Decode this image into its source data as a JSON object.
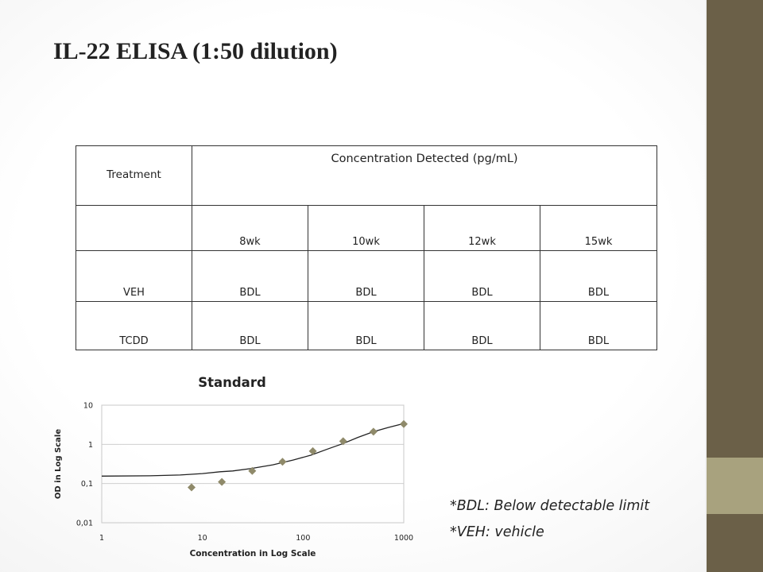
{
  "slide": {
    "title": "IL-22 ELISA (1:50 dilution)",
    "footnotes": [
      "*BDL: Below detectable limit",
      "*VEH: vehicle"
    ]
  },
  "table": {
    "treatment_header": "Treatment",
    "concentration_header": "Concentration  Detected (pg/mL)",
    "columns": [
      "8wk",
      "10wk",
      "12wk",
      "15wk"
    ],
    "rows": [
      {
        "label": "VEH",
        "values": [
          "BDL",
          "BDL",
          "BDL",
          "BDL"
        ]
      },
      {
        "label": "TCDD",
        "values": [
          "BDL",
          "BDL",
          "BDL",
          "BDL"
        ]
      }
    ]
  },
  "colors": {
    "sidebar": "#6b6048",
    "sidebar_accent": "#a8a27e",
    "marker": "#8f8a6a",
    "curve": "#222222"
  },
  "chart_data": {
    "type": "scatter",
    "title": "Standard",
    "xlabel": "Concentration in Log Scale",
    "ylabel": "OD in Log Scale",
    "x_scale": "log",
    "y_scale": "log",
    "xlim": [
      1,
      1000
    ],
    "ylim": [
      0.01,
      10
    ],
    "x_ticks": [
      1,
      10,
      100,
      1000
    ],
    "x_tick_labels": [
      "1",
      "10",
      "100",
      "1000"
    ],
    "y_ticks": [
      0.01,
      0.1,
      1,
      10
    ],
    "y_tick_labels": [
      "0,01",
      "0,1",
      "1",
      "10"
    ],
    "grid": "horizontal",
    "legend": "none",
    "series": [
      {
        "marker": "diamond",
        "x": [
          7.8,
          15.6,
          31.25,
          62.5,
          125,
          250,
          500,
          1000
        ],
        "y": [
          0.08,
          0.11,
          0.21,
          0.36,
          0.67,
          1.2,
          2.1,
          3.3
        ]
      }
    ],
    "fit_curve": {
      "x": [
        1,
        3,
        6,
        10,
        15,
        20,
        30,
        50,
        80,
        120,
        180,
        250,
        350,
        500,
        700,
        1000
      ],
      "y": [
        0.155,
        0.158,
        0.165,
        0.18,
        0.2,
        0.21,
        0.24,
        0.3,
        0.4,
        0.53,
        0.78,
        1.05,
        1.5,
        2.1,
        2.7,
        3.4
      ]
    }
  }
}
